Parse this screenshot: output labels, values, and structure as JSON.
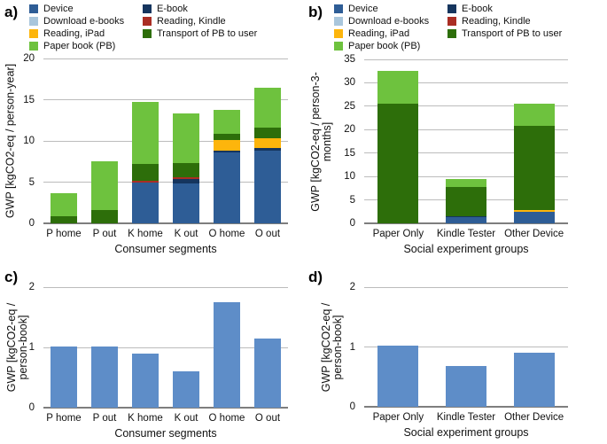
{
  "figure": {
    "panel_letters": {
      "a": "a)",
      "b": "b)",
      "c": "c)",
      "d": "d)"
    }
  },
  "legend": {
    "columns": [
      [
        {
          "label": "Device",
          "color": "#2e5d96"
        },
        {
          "label": "Download e-books",
          "color": "#a9c6dc"
        },
        {
          "label": "Reading, iPad",
          "color": "#fdb50c"
        },
        {
          "label": "Paper book (PB)",
          "color": "#6ec23e"
        }
      ],
      [
        {
          "label": "E-book",
          "color": "#15355e"
        },
        {
          "label": "Reading, Kindle",
          "color": "#aa2e24"
        },
        {
          "label": "Transport of PB to user",
          "color": "#2d6e0a"
        }
      ]
    ]
  },
  "chart_data": [
    {
      "id": "a",
      "type": "stacked-bar",
      "panel_label": "a)",
      "xlabel": "Consumer segments",
      "ylabel": "GWP [kgCO2-eq / person-year]",
      "ylabel_lines": [
        "GWP [kgCO2-eq / person-year]"
      ],
      "ylim": [
        0,
        20
      ],
      "yticks": [
        0,
        5,
        10,
        15,
        20
      ],
      "grid": true,
      "legend_position": "top",
      "categories": [
        "P home",
        "P out",
        "K home",
        "K out",
        "O home",
        "O out"
      ],
      "series": [
        {
          "name": "Device",
          "color": "#2e5d96",
          "values": [
            0,
            0,
            4.95,
            4.8,
            8.6,
            8.8
          ]
        },
        {
          "name": "E-book",
          "color": "#15355e",
          "values": [
            0,
            0,
            0,
            0.55,
            0.2,
            0.3
          ]
        },
        {
          "name": "Reading, Kindle",
          "color": "#aa2e24",
          "values": [
            0,
            0,
            0.2,
            0.2,
            0,
            0
          ]
        },
        {
          "name": "Reading, iPad",
          "color": "#fdb50c",
          "values": [
            0,
            0,
            0,
            0,
            1.3,
            1.2
          ]
        },
        {
          "name": "Transport of PB to user",
          "color": "#2d6e0a",
          "values": [
            0.9,
            1.6,
            2.05,
            1.75,
            0.8,
            1.3
          ]
        },
        {
          "name": "Paper book (PB)",
          "color": "#6ec23e",
          "values": [
            2.8,
            5.9,
            7.5,
            6.0,
            2.9,
            4.8
          ]
        }
      ],
      "totals": [
        3.7,
        7.5,
        14.7,
        13.3,
        13.8,
        16.4
      ]
    },
    {
      "id": "b",
      "type": "stacked-bar",
      "panel_label": "b)",
      "xlabel": "Social experiment groups",
      "ylabel": "GWP [kgCO2-eq / person-3-months]",
      "ylabel_lines": [
        "GWP [kgCO2-eq / person-3-",
        "months]"
      ],
      "ylim": [
        0,
        35
      ],
      "yticks": [
        0,
        5,
        10,
        15,
        20,
        25,
        30,
        35
      ],
      "grid": true,
      "legend_position": "top",
      "categories": [
        "Paper Only",
        "Kindle Tester",
        "Other Device"
      ],
      "series": [
        {
          "name": "Device",
          "color": "#2e5d96",
          "values": [
            0,
            1.3,
            2.5
          ]
        },
        {
          "name": "E-book",
          "color": "#15355e",
          "values": [
            0,
            0.3,
            0
          ]
        },
        {
          "name": "Reading, Kindle",
          "color": "#aa2e24",
          "values": [
            0,
            0,
            0
          ]
        },
        {
          "name": "Reading, iPad",
          "color": "#fdb50c",
          "values": [
            0,
            0,
            0.4
          ]
        },
        {
          "name": "Transport of PB to user",
          "color": "#2d6e0a",
          "values": [
            25.5,
            6.2,
            17.9
          ]
        },
        {
          "name": "Paper book (PB)",
          "color": "#6ec23e",
          "values": [
            7.0,
            1.7,
            4.8
          ]
        }
      ],
      "totals": [
        32.5,
        9.5,
        25.6
      ]
    },
    {
      "id": "c",
      "type": "bar",
      "panel_label": "c)",
      "xlabel": "Consumer segments",
      "ylabel": "GWP [kgCO2-eq / person-book]",
      "ylabel_lines": [
        "GWP [kgCO2-eq /",
        "person-book]"
      ],
      "ylim": [
        0,
        2
      ],
      "yticks": [
        0,
        1,
        2
      ],
      "grid": true,
      "bar_color": "#5e8dc8",
      "categories": [
        "P home",
        "P out",
        "K home",
        "K out",
        "O home",
        "O out"
      ],
      "values": [
        1.02,
        1.02,
        0.9,
        0.6,
        1.75,
        1.15
      ]
    },
    {
      "id": "d",
      "type": "bar",
      "panel_label": "d)",
      "xlabel": "Social experiment groups",
      "ylabel": "GWP [kgCO2-eq / person-book]",
      "ylabel_lines": [
        "GWP [kgCO2-eq /",
        "person-book]"
      ],
      "ylim": [
        0,
        2
      ],
      "yticks": [
        0,
        1,
        2
      ],
      "grid": true,
      "bar_color": "#5e8dc8",
      "categories": [
        "Paper Only",
        "Kindle Tester",
        "Other Device"
      ],
      "values": [
        1.02,
        0.68,
        0.9
      ]
    }
  ]
}
